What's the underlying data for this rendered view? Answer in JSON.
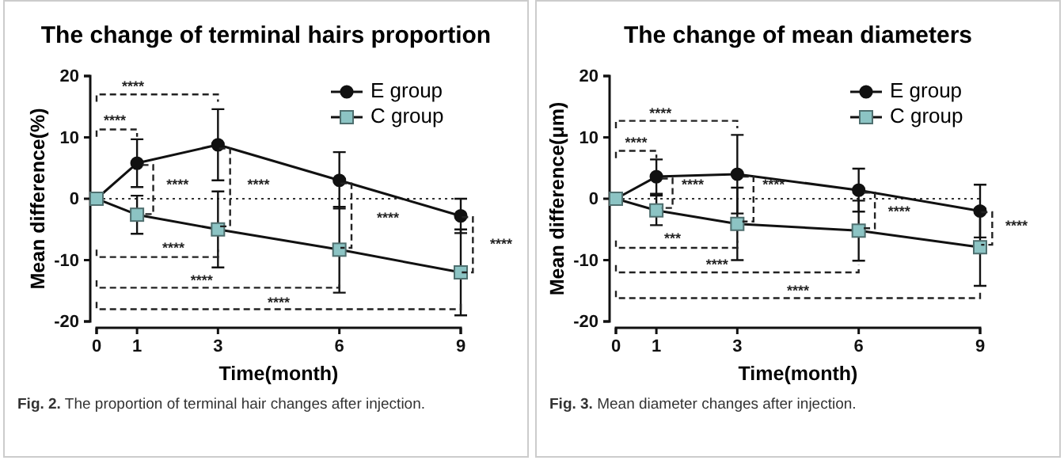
{
  "chart_data": [
    {
      "type": "line",
      "title": "The change of terminal hairs proportion",
      "xlabel": "Time(month)",
      "ylabel": "Mean difference(%)",
      "x": [
        0,
        1,
        3,
        6,
        9
      ],
      "xlim": [
        0,
        9
      ],
      "xticks": [
        0,
        1,
        3,
        6,
        9
      ],
      "ylim": [
        -20,
        20
      ],
      "yticks": [
        -20,
        -10,
        0,
        10,
        20
      ],
      "legend": "top right",
      "grid": false,
      "series": [
        {
          "name": "E group",
          "color": "#111111",
          "marker": "circle",
          "values": [
            0,
            5.8,
            8.8,
            3.0,
            -2.8
          ],
          "errors": [
            null,
            3.9,
            5.8,
            4.6,
            2.8
          ]
        },
        {
          "name": "C group",
          "color": "#8cc4c4",
          "marker": "square",
          "values": [
            0,
            -2.6,
            -5.0,
            -8.3,
            -12.0
          ],
          "errors": [
            null,
            3.1,
            6.2,
            7.0,
            7.0
          ]
        }
      ],
      "ref_lines": [
        {
          "axis": "y",
          "value": 0,
          "line_style": "dotted",
          "color": "#333333"
        }
      ],
      "annotations": [
        "****",
        "****",
        "****",
        "****",
        "****",
        "****",
        "****",
        "****",
        "****",
        "Fig. 2. The proportion of terminal hair changes after injection."
      ]
    },
    {
      "type": "line",
      "title": "The change of mean diameters",
      "xlabel": "Time(month)",
      "ylabel": "Mean difference(μm)",
      "x": [
        0,
        1,
        3,
        6,
        9
      ],
      "xlim": [
        0,
        9
      ],
      "xticks": [
        0,
        1,
        3,
        6,
        9
      ],
      "ylim": [
        -20,
        20
      ],
      "yticks": [
        -20,
        -10,
        0,
        10,
        20
      ],
      "legend": "top right",
      "grid": false,
      "series": [
        {
          "name": "E group",
          "color": "#111111",
          "marker": "circle",
          "values": [
            0,
            3.6,
            4.0,
            1.4,
            -2.0
          ],
          "errors": [
            null,
            2.8,
            6.4,
            3.5,
            4.3
          ]
        },
        {
          "name": "C group",
          "color": "#8cc4c4",
          "marker": "square",
          "values": [
            0,
            -1.9,
            -4.1,
            -5.2,
            -7.9
          ],
          "errors": [
            null,
            2.4,
            5.9,
            4.9,
            6.3
          ]
        }
      ],
      "ref_lines": [
        {
          "axis": "y",
          "value": 0,
          "line_style": "dotted",
          "color": "#333333"
        }
      ],
      "annotations": [
        "****",
        "****",
        "****",
        "****",
        "****",
        "****",
        "***",
        "****",
        "****",
        "Fig. 3. Mean diameter changes after injection."
      ]
    }
  ]
}
